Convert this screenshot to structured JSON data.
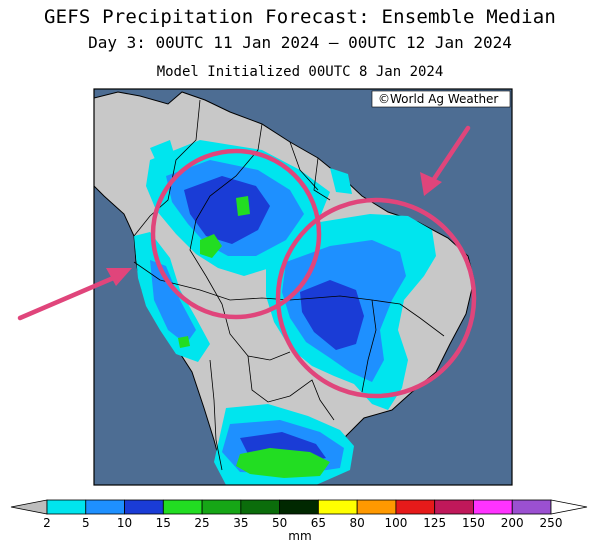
{
  "header": {
    "title": "GEFS Precipitation Forecast: Ensemble Median",
    "valid_period": "Day 3: 00UTC 11 Jan 2024 — 00UTC 12 Jan 2024",
    "initialized": "Model Initialized 00UTC 8 Jan 2024"
  },
  "map": {
    "credit": "©World Ag Weather",
    "ocean_color": "#4d6d93",
    "land_color": "#c8c8c8",
    "annotation_color": "#e0457b",
    "annotations": [
      {
        "type": "circle",
        "label": "northwest-amazon-focus"
      },
      {
        "type": "circle",
        "label": "central-brazil-focus"
      },
      {
        "type": "arrow",
        "label": "arrow-from-pacific"
      },
      {
        "type": "arrow",
        "label": "arrow-from-atlantic"
      }
    ]
  },
  "legend": {
    "unit": "mm",
    "ticks": [
      "2",
      "5",
      "10",
      "15",
      "25",
      "35",
      "50",
      "65",
      "80",
      "100",
      "125",
      "150",
      "200",
      "250"
    ],
    "colors": [
      "#00e5ee",
      "#1e90ff",
      "#1a3cd6",
      "#22dd22",
      "#16a616",
      "#0b6d0b",
      "#002800",
      "#ffff00",
      "#ff9900",
      "#e61a1a",
      "#c0185a",
      "#ff33ff",
      "#9b50d1"
    ]
  }
}
